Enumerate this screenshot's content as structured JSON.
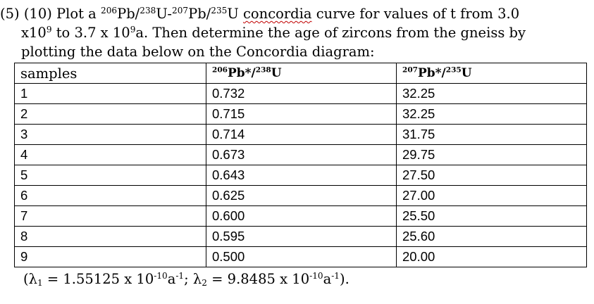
{
  "problem": {
    "line1": {
      "prefix": "(5) (10) Plot a ",
      "sup_a": "206",
      "t_a": "Pb/",
      "sup_b": "238",
      "t_b": "U-",
      "sup_c": "207",
      "t_c": "Pb/",
      "sup_d": "235",
      "t_d": "U ",
      "squiggle_word": "concordia",
      "suffix": " curve for values of t from 3.0"
    },
    "line2": {
      "a": "x10",
      "sup_a": "9",
      "b": " to 3.7 x 10",
      "sup_b": "9",
      "c": "a.  Then determine the age of zircons from the gneiss by"
    },
    "line3": "plotting the data below on the Concordia diagram:"
  },
  "table": {
    "headers": {
      "samples": "samples",
      "col2": {
        "sup_a": "206",
        "t_a": "Pb*/",
        "sup_b": "238",
        "t_b": "U"
      },
      "col3": {
        "sup_a": "207",
        "t_a": "Pb*/",
        "sup_b": "235",
        "t_b": "U"
      }
    },
    "rows": [
      [
        "1",
        "0.732",
        "32.25"
      ],
      [
        "2",
        "0.715",
        "32.25"
      ],
      [
        "3",
        "0.714",
        "31.75"
      ],
      [
        "4",
        "0.673",
        "29.75"
      ],
      [
        "5",
        "0.643",
        "27.50"
      ],
      [
        "6",
        "0.625",
        "27.00"
      ],
      [
        "7",
        "0.600",
        "25.50"
      ],
      [
        "8",
        "0.595",
        "25.60"
      ],
      [
        "9",
        "0.500",
        "20.00"
      ]
    ]
  },
  "constants": {
    "open": "(",
    "lambda1_sym": "λ",
    "lambda1_sub": "1",
    "lambda1_val": " = 1.55125 x 10",
    "lambda1_exp": "-10",
    "lambda1_unit": "a",
    "lambda1_unit_exp": "-1",
    "sep": "; ",
    "lambda2_sym": "λ",
    "lambda2_sub": "2",
    "lambda2_val": " = 9.8485 x 10",
    "lambda2_exp": "-10",
    "lambda2_unit": "a",
    "lambda2_unit_exp": "-1",
    "close": ")."
  }
}
